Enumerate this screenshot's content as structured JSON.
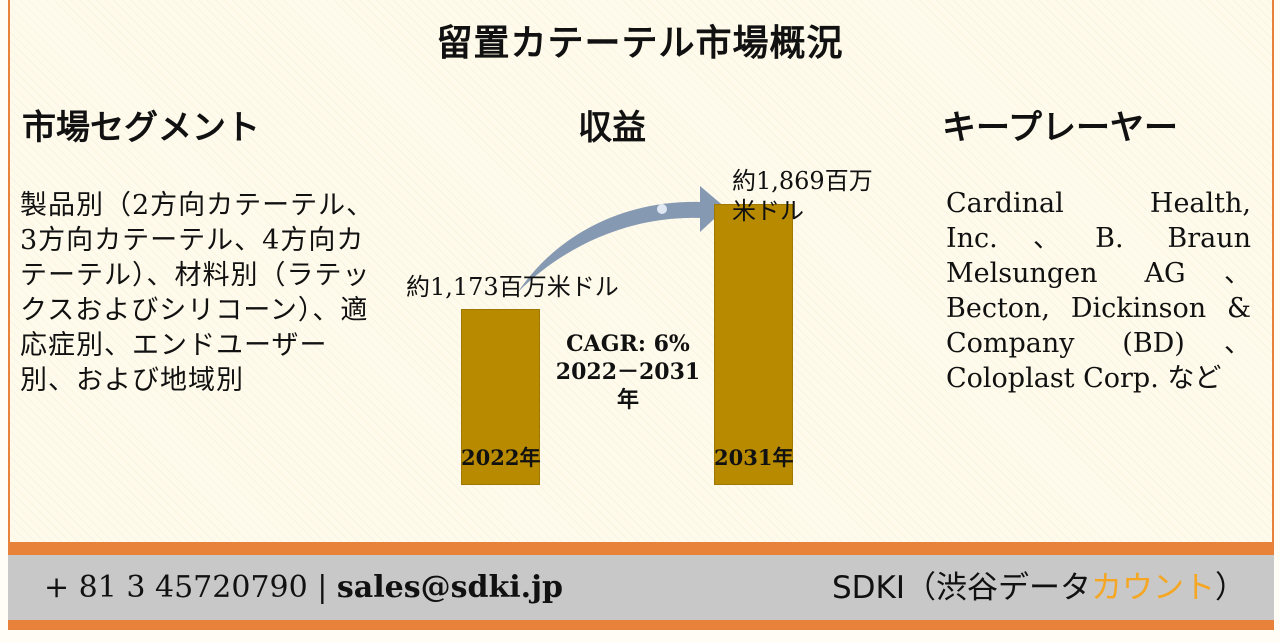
{
  "title": "留置カテーテル市場概況",
  "segments": {
    "heading": "市場セグメント",
    "body": "製品別（2方向カテーテル、3方向カテーテル、4方向カテーテル）、材料別（ラテックスおよびシリコーン）、適応症別、エンドユーザー別、および地域別"
  },
  "revenue": {
    "heading": "収益"
  },
  "key_players": {
    "heading": "キープレーヤー",
    "body": "Cardinal Health, Inc.、B. Braun Melsungen AG、Becton, Dickinson & Company (BD)、Coloplast Corp. など"
  },
  "chart_data": {
    "type": "bar",
    "categories": [
      "2022年",
      "2031年"
    ],
    "values": [
      1173,
      1869
    ],
    "value_labels": [
      "約1,173百万米ドル",
      "約1,869百万米ドル"
    ],
    "annotation": [
      "CAGR: 6%",
      "2022－2031年"
    ],
    "ylim": [
      0,
      2200
    ],
    "colors": {
      "bar": "#b88a00",
      "arrow": "#7f93b0"
    }
  },
  "footer": {
    "phone": "+ 81 3 45720790",
    "separator": "|",
    "email": "sales@sdki.jp",
    "brand_prefix": "SDKI（渋谷データ",
    "brand_accent": "カウント",
    "brand_suffix": "）"
  },
  "colors": {
    "accent": "#e8813a",
    "footer_bg": "#c8c8c8",
    "brand_accent": "#f5a623"
  }
}
